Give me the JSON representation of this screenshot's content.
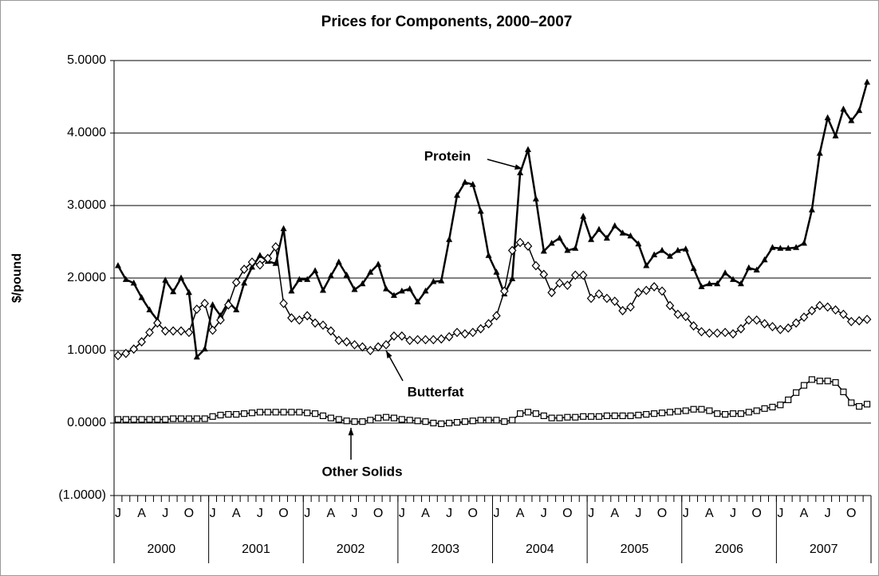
{
  "chart_data": {
    "type": "line",
    "title": "Prices for Components, 2000–2007",
    "y_label": "$/pound",
    "categories": [
      "J",
      null,
      null,
      "A",
      null,
      null,
      "J",
      null,
      null,
      "O",
      null,
      null,
      "J",
      null,
      null,
      "A",
      null,
      null,
      "J",
      null,
      null,
      "O",
      null,
      null,
      "J",
      null,
      null,
      "A",
      null,
      null,
      "J",
      null,
      null,
      "O",
      null,
      null,
      "J",
      null,
      null,
      "A",
      null,
      null,
      "J",
      null,
      null,
      "O",
      null,
      null,
      "J",
      null,
      null,
      "A",
      null,
      null,
      "J",
      null,
      null,
      "O",
      null,
      null,
      "J",
      null,
      null,
      "A",
      null,
      null,
      "J",
      null,
      null,
      "O",
      null,
      null,
      "J",
      null,
      null,
      "A",
      null,
      null,
      "J",
      null,
      null,
      "O",
      null,
      null,
      "J",
      null,
      null,
      "A",
      null,
      null,
      "J",
      null,
      null,
      "O",
      null,
      null
    ],
    "years": [
      "2000",
      "2001",
      "2002",
      "2003",
      "2004",
      "2005",
      "2006",
      "2007"
    ],
    "ylim": [
      -1,
      5
    ],
    "yticks": [
      {
        "value": -1,
        "label": "(1.0000)"
      },
      {
        "value": 0,
        "label": "0.0000"
      },
      {
        "value": 1,
        "label": "1.0000"
      },
      {
        "value": 2,
        "label": "2.0000"
      },
      {
        "value": 3,
        "label": "3.0000"
      },
      {
        "value": 4,
        "label": "4.0000"
      },
      {
        "value": 5,
        "label": "5.0000"
      }
    ],
    "grid": true,
    "series": [
      {
        "name": "Protein",
        "color": "#000000",
        "marker": "triangle",
        "values": [
          2.17,
          1.98,
          1.93,
          1.73,
          1.56,
          1.42,
          1.97,
          1.81,
          2.0,
          1.8,
          0.91,
          1.02,
          1.63,
          1.48,
          1.67,
          1.56,
          1.93,
          2.15,
          2.31,
          2.23,
          2.2,
          2.68,
          1.82,
          1.98,
          1.98,
          2.1,
          1.83,
          2.03,
          2.22,
          2.04,
          1.84,
          1.92,
          2.08,
          2.19,
          1.85,
          1.76,
          1.82,
          1.85,
          1.67,
          1.82,
          1.95,
          1.96,
          2.53,
          3.14,
          3.32,
          3.29,
          2.92,
          2.31,
          2.08,
          1.78,
          1.99,
          3.45,
          3.77,
          3.09,
          2.37,
          2.48,
          2.55,
          2.38,
          2.41,
          2.85,
          2.53,
          2.67,
          2.55,
          2.72,
          2.62,
          2.58,
          2.47,
          2.17,
          2.32,
          2.38,
          2.3,
          2.38,
          2.4,
          2.13,
          1.88,
          1.92,
          1.92,
          2.07,
          1.98,
          1.92,
          2.14,
          2.11,
          2.25,
          2.42,
          2.41,
          2.41,
          2.42,
          2.48,
          2.94,
          3.72,
          4.21,
          3.96,
          4.33,
          4.17,
          4.31,
          4.7
        ]
      },
      {
        "name": "Butterfat",
        "color": "#000000",
        "marker": "diamond",
        "values": [
          0.93,
          0.96,
          1.02,
          1.12,
          1.25,
          1.38,
          1.27,
          1.27,
          1.27,
          1.25,
          1.57,
          1.65,
          1.28,
          1.42,
          1.63,
          1.94,
          2.12,
          2.22,
          2.18,
          2.27,
          2.43,
          1.65,
          1.45,
          1.42,
          1.48,
          1.38,
          1.35,
          1.27,
          1.14,
          1.12,
          1.08,
          1.05,
          1.0,
          1.05,
          1.08,
          1.2,
          1.2,
          1.14,
          1.15,
          1.15,
          1.15,
          1.16,
          1.19,
          1.25,
          1.23,
          1.25,
          1.3,
          1.37,
          1.48,
          1.82,
          2.38,
          2.49,
          2.44,
          2.17,
          2.05,
          1.8,
          1.93,
          1.9,
          2.04,
          2.04,
          1.72,
          1.78,
          1.72,
          1.68,
          1.55,
          1.6,
          1.8,
          1.83,
          1.88,
          1.82,
          1.62,
          1.5,
          1.47,
          1.34,
          1.26,
          1.24,
          1.24,
          1.25,
          1.23,
          1.3,
          1.42,
          1.42,
          1.37,
          1.33,
          1.29,
          1.31,
          1.38,
          1.46,
          1.55,
          1.62,
          1.6,
          1.56,
          1.5,
          1.4,
          1.41,
          1.43
        ]
      },
      {
        "name": "Other Solids",
        "color": "#000000",
        "marker": "square",
        "values": [
          0.05,
          0.05,
          0.05,
          0.05,
          0.05,
          0.05,
          0.05,
          0.06,
          0.06,
          0.06,
          0.06,
          0.06,
          0.09,
          0.11,
          0.12,
          0.12,
          0.13,
          0.14,
          0.15,
          0.15,
          0.15,
          0.15,
          0.15,
          0.15,
          0.14,
          0.13,
          0.1,
          0.07,
          0.05,
          0.03,
          0.02,
          0.02,
          0.04,
          0.07,
          0.08,
          0.07,
          0.05,
          0.04,
          0.03,
          0.02,
          0.0,
          -0.01,
          0.0,
          0.01,
          0.02,
          0.03,
          0.04,
          0.04,
          0.04,
          0.02,
          0.04,
          0.13,
          0.15,
          0.13,
          0.1,
          0.07,
          0.07,
          0.08,
          0.08,
          0.09,
          0.09,
          0.09,
          0.1,
          0.1,
          0.1,
          0.1,
          0.11,
          0.12,
          0.13,
          0.14,
          0.15,
          0.16,
          0.17,
          0.19,
          0.19,
          0.17,
          0.13,
          0.12,
          0.13,
          0.13,
          0.15,
          0.17,
          0.2,
          0.22,
          0.25,
          0.32,
          0.42,
          0.52,
          0.6,
          0.58,
          0.58,
          0.56,
          0.43,
          0.28,
          0.23,
          0.26
        ]
      }
    ]
  }
}
